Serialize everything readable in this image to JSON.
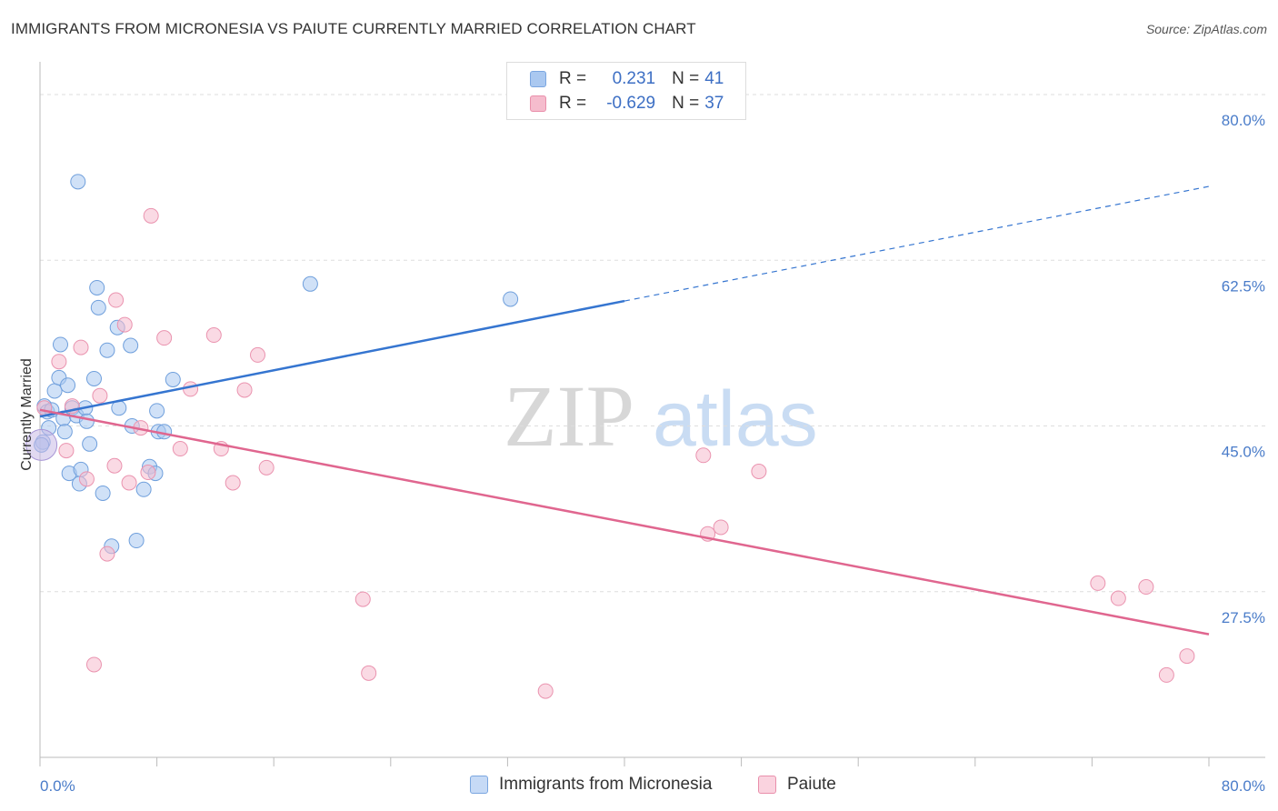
{
  "header": {
    "title": "IMMIGRANTS FROM MICRONESIA VS PAIUTE CURRENTLY MARRIED CORRELATION CHART",
    "source": "Source: ZipAtlas.com"
  },
  "legend_stats": {
    "r_label": "R =",
    "n_label": "N =",
    "rows": [
      {
        "r": "0.231",
        "n": "41",
        "color": "#aac8f0",
        "border": "#7aa6e0"
      },
      {
        "r": "-0.629",
        "n": "37",
        "color": "#f5bccd",
        "border": "#e98fab"
      }
    ]
  },
  "watermark": {
    "zip": "ZIP",
    "atlas": "atlas"
  },
  "chart_data": {
    "type": "scatter",
    "title": "IMMIGRANTS FROM MICRONESIA VS PAIUTE CURRENTLY MARRIED CORRELATION CHART",
    "xlabel": "",
    "ylabel": "Currently Married",
    "xlim": [
      0,
      80
    ],
    "ylim": [
      10,
      82.5
    ],
    "x_tick_labels": [
      "0.0%",
      "80.0%"
    ],
    "y_ticks": [
      27.5,
      45.0,
      62.5,
      80.0
    ],
    "y_tick_labels": [
      "27.5%",
      "45.0%",
      "62.5%",
      "80.0%"
    ],
    "grid": true,
    "legend_position": "bottom",
    "series": [
      {
        "name": "Immigrants from Micronesia",
        "color": "#aac8f0",
        "stroke": "#6f9fdc",
        "line_color": "#3575d0",
        "trend": {
          "x0": 0,
          "y0": 46.0,
          "x1": 40,
          "y1": 58.2,
          "x_ext": 80,
          "y_ext": 70.3
        },
        "points": [
          [
            0.2,
            43.3
          ],
          [
            0.3,
            47.1
          ],
          [
            0.5,
            46.5
          ],
          [
            0.6,
            44.8
          ],
          [
            0.8,
            46.7
          ],
          [
            1.0,
            48.7
          ],
          [
            1.3,
            50.1
          ],
          [
            1.4,
            53.6
          ],
          [
            1.6,
            45.8
          ],
          [
            1.7,
            44.4
          ],
          [
            1.9,
            49.3
          ],
          [
            2.0,
            40.0
          ],
          [
            2.2,
            46.9
          ],
          [
            2.5,
            46.1
          ],
          [
            2.7,
            38.9
          ],
          [
            2.8,
            40.4
          ],
          [
            2.6,
            70.8
          ],
          [
            3.1,
            46.9
          ],
          [
            3.2,
            45.5
          ],
          [
            3.4,
            43.1
          ],
          [
            3.7,
            50.0
          ],
          [
            3.9,
            59.6
          ],
          [
            4.0,
            57.5
          ],
          [
            4.3,
            37.9
          ],
          [
            4.6,
            53.0
          ],
          [
            4.9,
            32.3
          ],
          [
            5.3,
            55.4
          ],
          [
            5.4,
            46.9
          ],
          [
            6.2,
            53.5
          ],
          [
            6.3,
            45.0
          ],
          [
            6.6,
            32.9
          ],
          [
            7.1,
            38.3
          ],
          [
            7.5,
            40.7
          ],
          [
            7.9,
            40.0
          ],
          [
            8.0,
            46.6
          ],
          [
            8.1,
            44.4
          ],
          [
            8.5,
            44.4
          ],
          [
            9.1,
            49.9
          ],
          [
            18.5,
            60.0
          ],
          [
            32.2,
            58.4
          ],
          [
            0.1,
            43.0
          ]
        ]
      },
      {
        "name": "Paiute",
        "color": "#f5bccd",
        "stroke": "#ea93af",
        "line_color": "#e0668f",
        "trend": {
          "x0": 0,
          "y0": 46.7,
          "x1": 80,
          "y1": 23.0
        },
        "points": [
          [
            0.3,
            46.9
          ],
          [
            1.3,
            51.8
          ],
          [
            1.8,
            42.4
          ],
          [
            2.2,
            47.1
          ],
          [
            2.8,
            53.3
          ],
          [
            3.2,
            39.4
          ],
          [
            4.1,
            48.2
          ],
          [
            4.6,
            31.5
          ],
          [
            5.1,
            40.8
          ],
          [
            5.2,
            58.3
          ],
          [
            5.8,
            55.7
          ],
          [
            6.1,
            39.0
          ],
          [
            6.9,
            44.8
          ],
          [
            7.4,
            40.1
          ],
          [
            7.6,
            67.2
          ],
          [
            8.5,
            54.3
          ],
          [
            9.6,
            42.6
          ],
          [
            10.3,
            48.9
          ],
          [
            11.9,
            54.6
          ],
          [
            12.4,
            42.6
          ],
          [
            13.2,
            39.0
          ],
          [
            14.0,
            48.8
          ],
          [
            14.9,
            52.5
          ],
          [
            15.5,
            40.6
          ],
          [
            22.1,
            26.7
          ],
          [
            22.5,
            18.9
          ],
          [
            34.6,
            17.0
          ],
          [
            45.4,
            41.9
          ],
          [
            45.7,
            33.6
          ],
          [
            46.6,
            34.3
          ],
          [
            49.2,
            40.2
          ],
          [
            72.4,
            28.4
          ],
          [
            73.8,
            26.8
          ],
          [
            75.7,
            28.0
          ],
          [
            77.1,
            18.7
          ],
          [
            78.5,
            20.7
          ],
          [
            3.7,
            19.8
          ]
        ]
      }
    ]
  }
}
